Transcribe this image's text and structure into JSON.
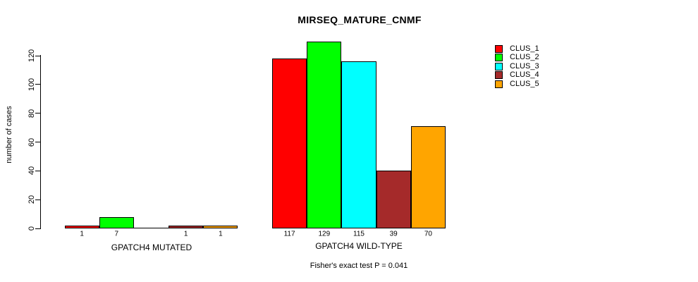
{
  "chart_data": {
    "type": "bar",
    "title": "MIRSEQ_MATURE_CNMF",
    "ylabel": "number of cases",
    "ylim": [
      0,
      130
    ],
    "yticks": [
      0,
      20,
      40,
      60,
      80,
      100,
      120
    ],
    "grid": false,
    "legend_position": "top-right",
    "clusters": [
      {
        "name": "CLUS_1",
        "color": "#FF0000"
      },
      {
        "name": "CLUS_2",
        "color": "#00FF00"
      },
      {
        "name": "CLUS_3",
        "color": "#00FFFF"
      },
      {
        "name": "CLUS_4",
        "color": "#A52A2A"
      },
      {
        "name": "CLUS_5",
        "color": "#FFA500"
      }
    ],
    "groups": [
      {
        "label": "GPATCH4 MUTATED",
        "values": [
          1,
          7,
          0,
          1,
          1
        ]
      },
      {
        "label": "GPATCH4 WILD-TYPE",
        "values": [
          117,
          129,
          115,
          39,
          70
        ]
      }
    ],
    "footnote": "Fisher's exact test P = 0.041"
  }
}
